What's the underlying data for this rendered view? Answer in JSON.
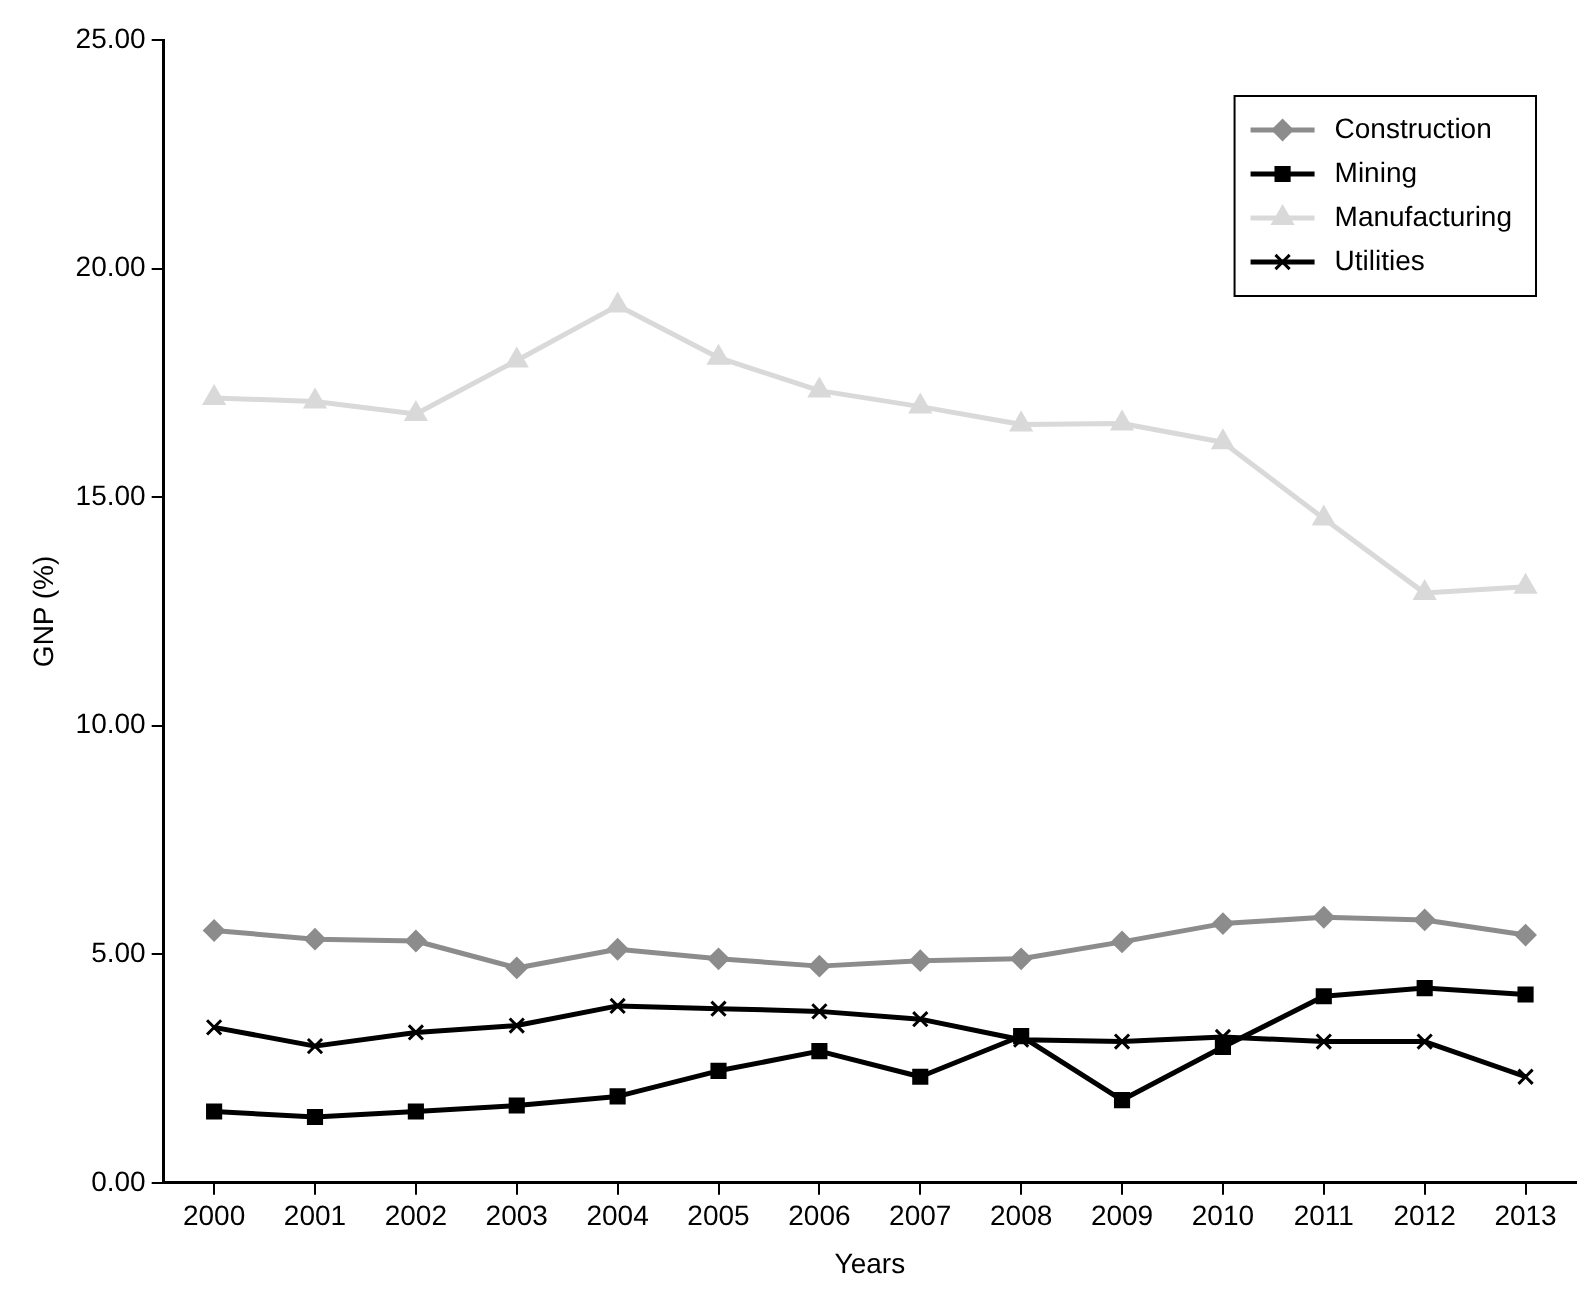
{
  "chart_data": {
    "type": "line",
    "xlabel": "Years",
    "ylabel": "GNP (%)",
    "categories": [
      "2000",
      "2001",
      "2002",
      "2003",
      "2004",
      "2005",
      "2006",
      "2007",
      "2008",
      "2009",
      "2010",
      "2011",
      "2012",
      "2013"
    ],
    "series": [
      {
        "name": "Construction",
        "color": "#8c8c8c",
        "marker": "diamond",
        "values": [
          5.52,
          5.33,
          5.29,
          4.7,
          5.11,
          4.9,
          4.74,
          4.86,
          4.9,
          5.27,
          5.67,
          5.81,
          5.75,
          5.42
        ]
      },
      {
        "name": "Mining",
        "color": "#000000",
        "marker": "square",
        "values": [
          1.56,
          1.44,
          1.56,
          1.69,
          1.89,
          2.45,
          2.88,
          2.32,
          3.21,
          1.81,
          2.97,
          4.08,
          4.26,
          4.12
        ]
      },
      {
        "name": "Manufacturing",
        "color": "#d9d9d9",
        "marker": "triangle",
        "values": [
          17.17,
          17.09,
          16.82,
          17.99,
          19.19,
          18.05,
          17.33,
          16.98,
          16.59,
          16.61,
          16.2,
          14.53,
          12.9,
          13.04
        ]
      },
      {
        "name": "Utilities",
        "color": "#000000",
        "marker": "cross",
        "values": [
          3.4,
          2.99,
          3.29,
          3.44,
          3.87,
          3.81,
          3.75,
          3.58,
          3.13,
          3.09,
          3.19,
          3.09,
          3.09,
          2.32
        ]
      }
    ],
    "ylim": [
      0,
      25
    ],
    "yticks": [
      {
        "value": 0,
        "label": "0.00"
      },
      {
        "value": 5,
        "label": "5.00"
      },
      {
        "value": 10,
        "label": "10.00"
      },
      {
        "value": 15,
        "label": "15.00"
      },
      {
        "value": 20,
        "label": "20.00"
      },
      {
        "value": 25,
        "label": "25.00"
      }
    ],
    "grid": false,
    "legend": "top right",
    "line_style": "solid"
  }
}
